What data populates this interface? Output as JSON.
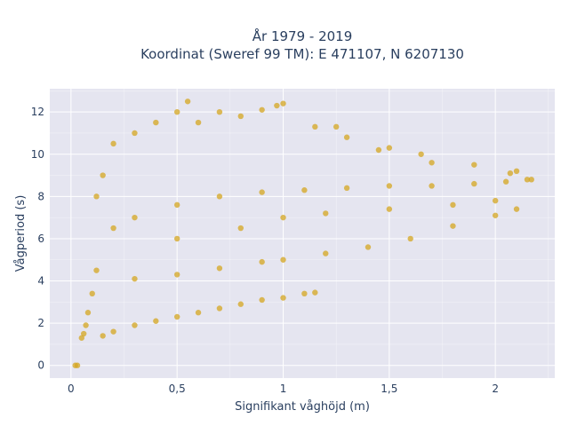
{
  "chart_data": {
    "type": "scatter",
    "title_line1": "År 1979 - 2019",
    "title_line2": "Koordinat (Sweref 99 TM): E 471107, N 6207130",
    "xlabel": "Signifikant våghöjd (m)",
    "ylabel": "Vågperiod (s)",
    "xlim": [
      -0.1,
      2.28
    ],
    "ylim": [
      -0.6,
      13.1
    ],
    "xticks": [
      {
        "value": 0,
        "label": "0"
      },
      {
        "value": 0.5,
        "label": "0,5"
      },
      {
        "value": 1,
        "label": "1"
      },
      {
        "value": 1.5,
        "label": "1,5"
      },
      {
        "value": 2,
        "label": "2"
      }
    ],
    "yticks": [
      {
        "value": 0,
        "label": "0"
      },
      {
        "value": 2,
        "label": "2"
      },
      {
        "value": 4,
        "label": "4"
      },
      {
        "value": 6,
        "label": "6"
      },
      {
        "value": 8,
        "label": "8"
      },
      {
        "value": 10,
        "label": "10"
      },
      {
        "value": 12,
        "label": "12"
      }
    ],
    "grid": true,
    "legend": "none",
    "colors": {
      "marker": "#D4A520",
      "plot_background": "#E5E5F0",
      "gridline": "#ffffff"
    },
    "series": [
      {
        "points": [
          [
            0.02,
            0.0
          ],
          [
            0.03,
            0.0
          ],
          [
            0.05,
            1.3
          ],
          [
            0.07,
            1.9
          ],
          [
            0.06,
            1.5
          ],
          [
            0.08,
            2.5
          ],
          [
            0.1,
            3.4
          ],
          [
            0.12,
            4.5
          ],
          [
            0.15,
            1.4
          ],
          [
            0.2,
            1.6
          ],
          [
            0.3,
            1.9
          ],
          [
            0.4,
            2.1
          ],
          [
            0.5,
            2.3
          ],
          [
            0.6,
            2.5
          ],
          [
            0.7,
            2.7
          ],
          [
            0.8,
            2.9
          ],
          [
            0.9,
            3.1
          ],
          [
            1.0,
            3.2
          ],
          [
            1.1,
            3.4
          ],
          [
            1.15,
            3.45
          ],
          [
            0.3,
            4.1
          ],
          [
            0.5,
            4.3
          ],
          [
            0.7,
            4.6
          ],
          [
            0.9,
            4.9
          ],
          [
            1.0,
            5.0
          ],
          [
            1.2,
            5.3
          ],
          [
            1.4,
            5.6
          ],
          [
            1.6,
            6.0
          ],
          [
            1.8,
            6.6
          ],
          [
            2.0,
            7.1
          ],
          [
            2.1,
            7.4
          ],
          [
            0.3,
            7.0
          ],
          [
            0.5,
            7.6
          ],
          [
            0.7,
            8.0
          ],
          [
            0.9,
            8.2
          ],
          [
            1.1,
            8.3
          ],
          [
            1.3,
            8.4
          ],
          [
            1.5,
            8.5
          ],
          [
            1.7,
            8.5
          ],
          [
            1.9,
            8.6
          ],
          [
            2.05,
            8.7
          ],
          [
            2.15,
            8.8
          ],
          [
            0.2,
            6.5
          ],
          [
            0.5,
            6.0
          ],
          [
            0.8,
            6.5
          ],
          [
            1.0,
            7.0
          ],
          [
            1.2,
            7.2
          ],
          [
            1.5,
            7.4
          ],
          [
            1.8,
            7.6
          ],
          [
            2.0,
            7.8
          ],
          [
            0.12,
            8.0
          ],
          [
            0.15,
            9.0
          ],
          [
            0.2,
            10.5
          ],
          [
            0.3,
            11.0
          ],
          [
            0.4,
            11.5
          ],
          [
            0.5,
            12.0
          ],
          [
            0.55,
            12.5
          ],
          [
            0.6,
            11.5
          ],
          [
            0.7,
            12.0
          ],
          [
            0.8,
            11.8
          ],
          [
            0.9,
            12.1
          ],
          [
            0.97,
            12.3
          ],
          [
            1.0,
            12.4
          ],
          [
            1.15,
            11.3
          ],
          [
            1.25,
            11.3
          ],
          [
            1.3,
            10.8
          ],
          [
            1.45,
            10.2
          ],
          [
            1.5,
            10.3
          ],
          [
            1.65,
            10.0
          ],
          [
            1.7,
            9.6
          ],
          [
            1.9,
            9.5
          ],
          [
            2.07,
            9.1
          ],
          [
            2.1,
            9.2
          ],
          [
            2.17,
            8.8
          ]
        ]
      }
    ]
  }
}
